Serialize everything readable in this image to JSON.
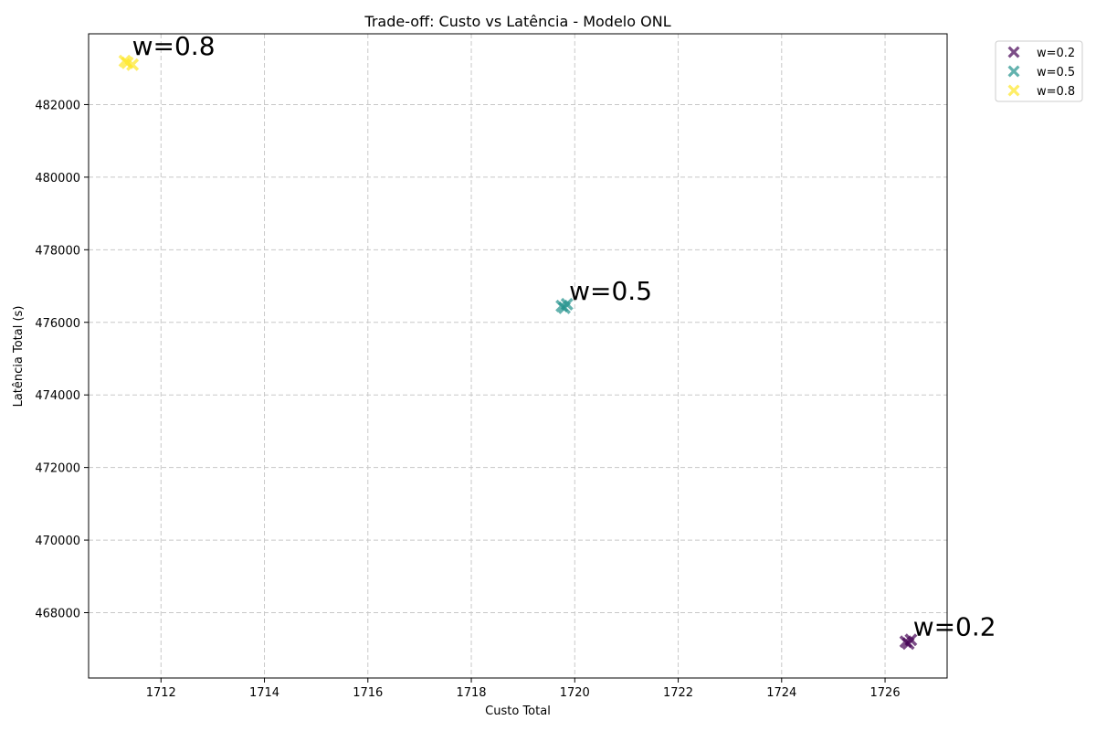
{
  "chart_data": {
    "type": "scatter",
    "title": "Trade-off: Custo vs Latência - Modelo ONL",
    "xlabel": "Custo Total",
    "ylabel": "Latência Total (s)",
    "xlim": [
      1710.6,
      1727.2
    ],
    "ylim": [
      466200,
      483950
    ],
    "xticks": [
      1712,
      1714,
      1716,
      1718,
      1720,
      1722,
      1724,
      1726
    ],
    "yticks": [
      468000,
      470000,
      472000,
      474000,
      476000,
      478000,
      480000,
      482000
    ],
    "grid": true,
    "legend_position": "outside-top-right",
    "marker": "X",
    "series": [
      {
        "name": "w=0.2",
        "color": "#440154",
        "points": [
          [
            1726.4,
            467200
          ],
          [
            1726.45,
            467150
          ],
          [
            1726.5,
            467250
          ]
        ],
        "annotation": "w=0.2"
      },
      {
        "name": "w=0.5",
        "color": "#21918c",
        "points": [
          [
            1719.75,
            476450
          ],
          [
            1719.8,
            476400
          ],
          [
            1719.85,
            476500
          ]
        ],
        "annotation": "w=0.5"
      },
      {
        "name": "w=0.8",
        "color": "#fde725",
        "points": [
          [
            1711.3,
            483200
          ],
          [
            1711.35,
            483150
          ],
          [
            1711.45,
            483100
          ]
        ],
        "annotation": "w=0.8"
      }
    ]
  }
}
